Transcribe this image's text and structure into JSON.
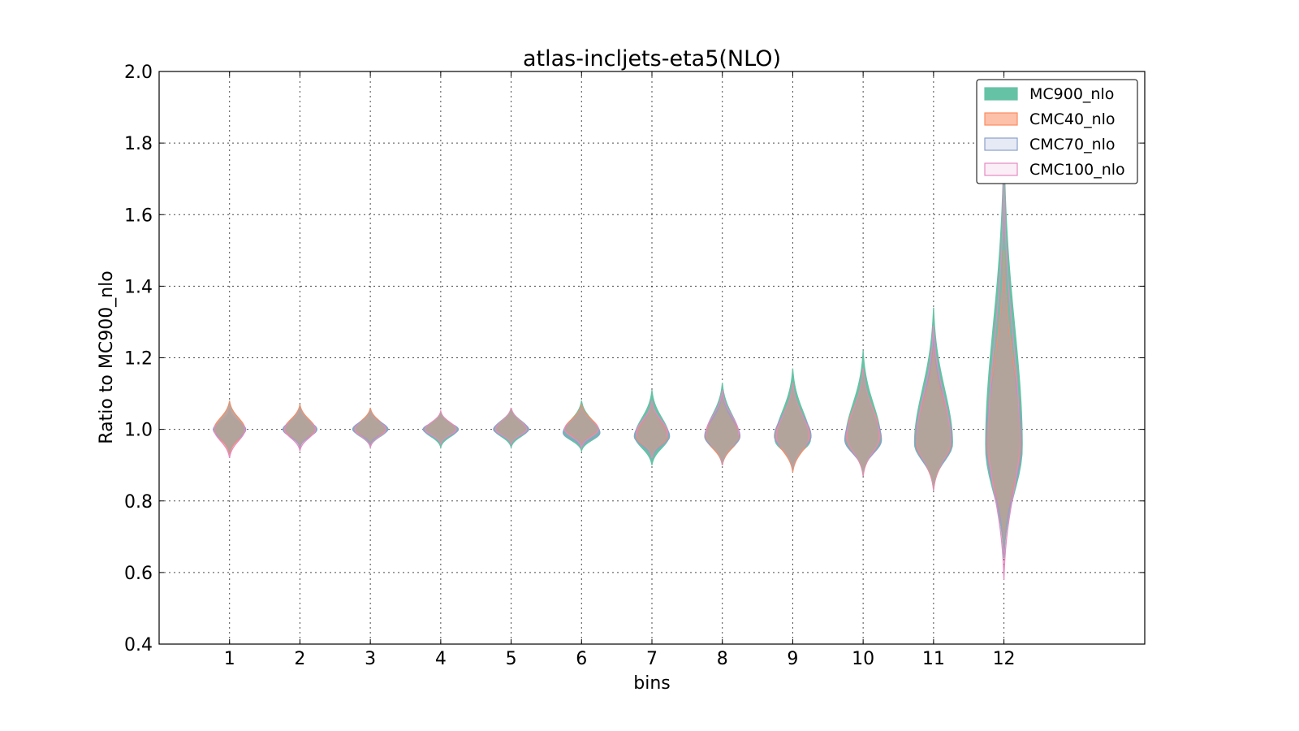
{
  "chart_data": {
    "type": "violin",
    "title": "atlas-incljets-eta5(NLO)",
    "xlabel": "bins",
    "ylabel": "Ratio to MC900_nlo",
    "ylim": [
      0.4,
      2.0
    ],
    "yticks": [
      "0.4",
      "0.6",
      "0.8",
      "1.0",
      "1.2",
      "1.4",
      "1.6",
      "1.8",
      "2.0"
    ],
    "xticks": [
      "1",
      "2",
      "3",
      "4",
      "5",
      "6",
      "7",
      "8",
      "9",
      "10",
      "11",
      "12"
    ],
    "xlim": [
      0,
      14
    ],
    "grid": true,
    "legend_position": "top-right",
    "series": [
      {
        "name": "MC900_nlo",
        "fill": "#66c2a5",
        "edge": "#66c2a5",
        "fill_opacity": 1.0,
        "violins": [
          {
            "bin": 1,
            "min": 0.93,
            "max": 1.05,
            "mode": 1.0,
            "half_width": 0.22
          },
          {
            "bin": 2,
            "min": 0.95,
            "max": 1.05,
            "mode": 1.0,
            "half_width": 0.24
          },
          {
            "bin": 3,
            "min": 0.95,
            "max": 1.04,
            "mode": 1.0,
            "half_width": 0.24
          },
          {
            "bin": 4,
            "min": 0.95,
            "max": 1.04,
            "mode": 1.0,
            "half_width": 0.24
          },
          {
            "bin": 5,
            "min": 0.95,
            "max": 1.06,
            "mode": 1.0,
            "half_width": 0.24
          },
          {
            "bin": 6,
            "min": 0.94,
            "max": 1.08,
            "mode": 0.99,
            "half_width": 0.26
          },
          {
            "bin": 7,
            "min": 0.9,
            "max": 1.11,
            "mode": 0.98,
            "half_width": 0.24
          },
          {
            "bin": 8,
            "min": 0.9,
            "max": 1.13,
            "mode": 0.98,
            "half_width": 0.24
          },
          {
            "bin": 9,
            "min": 0.9,
            "max": 1.17,
            "mode": 0.97,
            "half_width": 0.25
          },
          {
            "bin": 10,
            "min": 0.88,
            "max": 1.22,
            "mode": 0.97,
            "half_width": 0.25
          },
          {
            "bin": 11,
            "min": 0.84,
            "max": 1.34,
            "mode": 0.96,
            "half_width": 0.27
          },
          {
            "bin": 12,
            "min": 0.64,
            "max": 1.8,
            "mode": 0.95,
            "half_width": 0.26
          }
        ]
      },
      {
        "name": "CMC40_nlo",
        "fill": "#fc8d62",
        "edge": "#fc8d62",
        "fill_opacity": 0.55,
        "violins": [
          {
            "bin": 1,
            "min": 0.93,
            "max": 1.08,
            "mode": 1.0,
            "half_width": 0.22
          },
          {
            "bin": 2,
            "min": 0.95,
            "max": 1.07,
            "mode": 1.0,
            "half_width": 0.22
          },
          {
            "bin": 3,
            "min": 0.96,
            "max": 1.06,
            "mode": 1.0,
            "half_width": 0.22
          },
          {
            "bin": 4,
            "min": 0.96,
            "max": 1.05,
            "mode": 1.0,
            "half_width": 0.22
          },
          {
            "bin": 5,
            "min": 0.96,
            "max": 1.06,
            "mode": 1.0,
            "half_width": 0.22
          },
          {
            "bin": 6,
            "min": 0.96,
            "max": 1.07,
            "mode": 1.0,
            "half_width": 0.24
          },
          {
            "bin": 7,
            "min": 0.92,
            "max": 1.08,
            "mode": 0.98,
            "half_width": 0.22
          },
          {
            "bin": 8,
            "min": 0.9,
            "max": 1.1,
            "mode": 0.98,
            "half_width": 0.24
          },
          {
            "bin": 9,
            "min": 0.88,
            "max": 1.13,
            "mode": 0.98,
            "half_width": 0.24
          },
          {
            "bin": 10,
            "min": 0.87,
            "max": 1.17,
            "mode": 0.98,
            "half_width": 0.24
          },
          {
            "bin": 11,
            "min": 0.83,
            "max": 1.23,
            "mode": 0.97,
            "half_width": 0.26
          },
          {
            "bin": 12,
            "min": 0.65,
            "max": 1.5,
            "mode": 0.97,
            "half_width": 0.24
          }
        ]
      },
      {
        "name": "CMC70_nlo",
        "fill": "#8da0cb",
        "edge": "#8da0cb",
        "fill_opacity": 0.22,
        "violins": [
          {
            "bin": 1,
            "min": 0.94,
            "max": 1.05,
            "mode": 1.0,
            "half_width": 0.23
          },
          {
            "bin": 2,
            "min": 0.95,
            "max": 1.05,
            "mode": 1.0,
            "half_width": 0.24
          },
          {
            "bin": 3,
            "min": 0.96,
            "max": 1.05,
            "mode": 1.0,
            "half_width": 0.25
          },
          {
            "bin": 4,
            "min": 0.96,
            "max": 1.04,
            "mode": 1.0,
            "half_width": 0.25
          },
          {
            "bin": 5,
            "min": 0.96,
            "max": 1.05,
            "mode": 1.0,
            "half_width": 0.25
          },
          {
            "bin": 6,
            "min": 0.95,
            "max": 1.06,
            "mode": 0.99,
            "half_width": 0.26
          },
          {
            "bin": 7,
            "min": 0.92,
            "max": 1.08,
            "mode": 0.98,
            "half_width": 0.25
          },
          {
            "bin": 8,
            "min": 0.91,
            "max": 1.1,
            "mode": 0.98,
            "half_width": 0.25
          },
          {
            "bin": 9,
            "min": 0.9,
            "max": 1.12,
            "mode": 0.98,
            "half_width": 0.26
          },
          {
            "bin": 10,
            "min": 0.88,
            "max": 1.15,
            "mode": 0.97,
            "half_width": 0.26
          },
          {
            "bin": 11,
            "min": 0.84,
            "max": 1.27,
            "mode": 0.96,
            "half_width": 0.26
          },
          {
            "bin": 12,
            "min": 0.65,
            "max": 1.45,
            "mode": 0.96,
            "half_width": 0.25
          }
        ]
      },
      {
        "name": "CMC100_nlo",
        "fill": "#e78ac3",
        "edge": "#e78ac3",
        "fill_opacity": 0.12,
        "violins": [
          {
            "bin": 1,
            "min": 0.92,
            "max": 1.06,
            "mode": 1.0,
            "half_width": 0.22
          },
          {
            "bin": 2,
            "min": 0.94,
            "max": 1.06,
            "mode": 1.0,
            "half_width": 0.22
          },
          {
            "bin": 3,
            "min": 0.95,
            "max": 1.05,
            "mode": 1.0,
            "half_width": 0.22
          },
          {
            "bin": 4,
            "min": 0.96,
            "max": 1.05,
            "mode": 1.0,
            "half_width": 0.22
          },
          {
            "bin": 5,
            "min": 0.96,
            "max": 1.06,
            "mode": 1.0,
            "half_width": 0.22
          },
          {
            "bin": 6,
            "min": 0.95,
            "max": 1.06,
            "mode": 1.0,
            "half_width": 0.24
          },
          {
            "bin": 7,
            "min": 0.92,
            "max": 1.08,
            "mode": 0.99,
            "half_width": 0.22
          },
          {
            "bin": 8,
            "min": 0.9,
            "max": 1.11,
            "mode": 0.99,
            "half_width": 0.23
          },
          {
            "bin": 9,
            "min": 0.89,
            "max": 1.13,
            "mode": 0.98,
            "half_width": 0.23
          },
          {
            "bin": 10,
            "min": 0.87,
            "max": 1.17,
            "mode": 0.98,
            "half_width": 0.23
          },
          {
            "bin": 11,
            "min": 0.83,
            "max": 1.29,
            "mode": 0.97,
            "half_width": 0.24
          },
          {
            "bin": 12,
            "min": 0.58,
            "max": 1.7,
            "mode": 0.97,
            "half_width": 0.22
          }
        ]
      }
    ],
    "overlap_color": "#b2a49a"
  }
}
